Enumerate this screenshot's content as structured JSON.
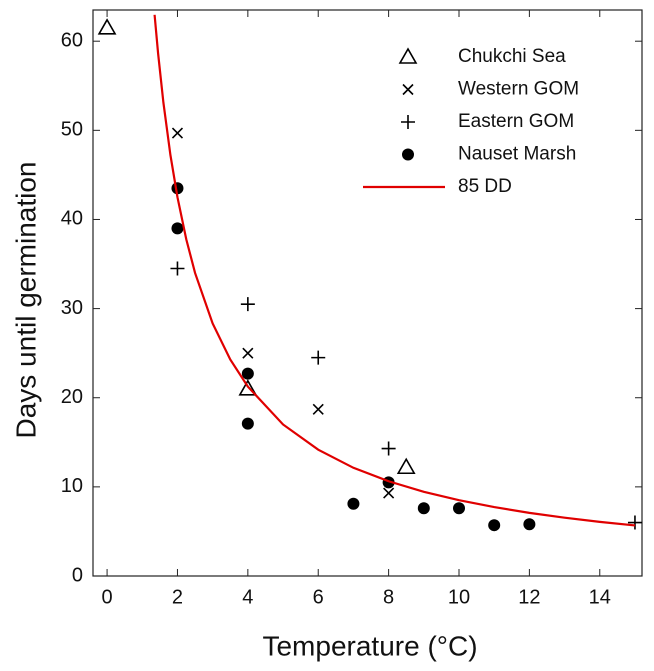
{
  "chart_data": {
    "type": "scatter",
    "x_label": "Temperature (°C)",
    "y_label": "Days until germination",
    "xlim": [
      -0.4,
      15.2
    ],
    "ylim": [
      0,
      63.5
    ],
    "xticks": [
      0,
      2,
      4,
      6,
      8,
      10,
      12,
      14
    ],
    "yticks": [
      0,
      10,
      20,
      30,
      40,
      50,
      60
    ],
    "legend": "top-right",
    "series": [
      {
        "name": "Chukchi Sea",
        "marker": "triangle",
        "color": "#000000",
        "x": [
          0,
          4,
          8.5
        ],
        "values": [
          61.5,
          21,
          12.2
        ]
      },
      {
        "name": "Western GOM",
        "marker": "x",
        "color": "#000000",
        "x": [
          2,
          4,
          6,
          8
        ],
        "values": [
          49.7,
          25,
          18.7,
          9.3
        ]
      },
      {
        "name": "Eastern GOM",
        "marker": "plus",
        "color": "#000000",
        "x": [
          2,
          4,
          6,
          8,
          15
        ],
        "values": [
          34.5,
          30.5,
          24.5,
          14.3,
          6
        ]
      },
      {
        "name": "Nauset Marsh",
        "marker": "circle",
        "color": "#000000",
        "x": [
          2,
          2,
          4,
          4,
          7,
          8,
          9,
          10,
          11,
          12
        ],
        "values": [
          43.5,
          39,
          22.7,
          17.1,
          8.1,
          10.5,
          7.6,
          7.6,
          5.7,
          5.8
        ]
      },
      {
        "name": "85 DD",
        "marker": "line",
        "color": "#e00000",
        "x": [
          1.35,
          1.45,
          1.6,
          1.8,
          2,
          2.25,
          2.5,
          3,
          3.5,
          4,
          5,
          6,
          7,
          8,
          9,
          10,
          11,
          12,
          13,
          14,
          15
        ],
        "values": [
          62.96,
          58.62,
          53.13,
          47.22,
          42.5,
          37.78,
          34,
          28.33,
          24.29,
          21.25,
          17,
          14.17,
          12.14,
          10.63,
          9.44,
          8.5,
          7.73,
          7.08,
          6.54,
          6.07,
          5.67
        ]
      }
    ]
  }
}
